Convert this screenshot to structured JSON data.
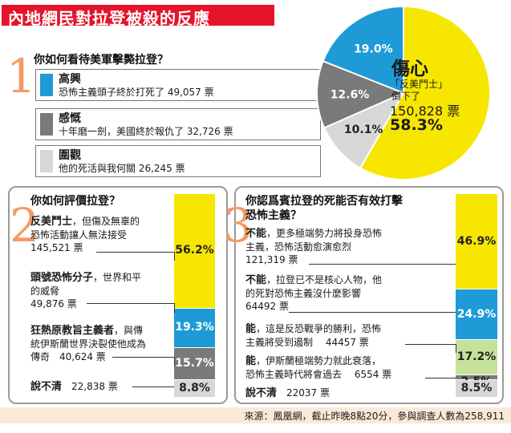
{
  "title": "內地網民對拉登被殺的反應",
  "source": "來源：鳳凰網，截止昨晚8點20分，參與調查人數為258,911",
  "colors": {
    "yellow": "#f7e600",
    "blue": "#1e9bd7",
    "darkgray": "#7a7a7a",
    "lightgray": "#d7d7d7",
    "green": "#c5e29a",
    "red": "#e5142a",
    "orange": "#f29b66"
  },
  "q1": {
    "num": "1",
    "question": "你如何看待美軍擊斃拉登？",
    "options": [
      {
        "title": "高興",
        "desc": "恐怖主義頭子終於打死了 49,057 票"
      },
      {
        "title": "感慨",
        "desc": "十年磨一劍，美國終於報仇了 32,726 票"
      },
      {
        "title": "圍觀",
        "desc": "他的死活與我何關  26,245 票"
      }
    ],
    "main_label": {
      "title": "傷心",
      "line1": "「反美鬥士」",
      "line2": "倒下了",
      "line3": "150,828 票",
      "pct": "58.3%"
    }
  },
  "q2": {
    "num": "2",
    "question": "你如何評價拉登？",
    "items": [
      {
        "bold": "反美鬥士",
        "line1": "，但傷及無辜的",
        "line2": "恐怖活動讓人無法接受",
        "line3": "145,521 票"
      },
      {
        "bold": "頭號恐怖分子",
        "line1": "，世界和平",
        "line2": "的威脅",
        "line3": "49,876 票"
      },
      {
        "bold": "狂熱原教旨主義者",
        "line1": "，與傳",
        "line2": "統伊斯蘭世界決裂使他成為",
        "line3": "傳奇　40,624 票"
      },
      {
        "bold": "說不清",
        "line1": "　22,838 票",
        "line2": "",
        "line3": ""
      }
    ]
  },
  "q3": {
    "num": "3",
    "question_line1": "你認爲賓拉登的死能否有效打擊",
    "question_line2": "恐怖主義？",
    "items": [
      {
        "bold": "不能",
        "line1": "，更多極端勢力將投身恐怖",
        "line2": "主義，恐怖活動愈演愈烈",
        "line3": "121,319 票"
      },
      {
        "bold": "不能",
        "line1": "，拉登已不是核心人物，他",
        "line2": "的死對恐怖主義沒什麼影響",
        "line3": "64492 票"
      },
      {
        "bold": "能",
        "line1": "，這是反恐戰爭的勝利，恐怖",
        "line2": "主義將受到遏制　 44457 票",
        "line3": ""
      },
      {
        "bold": "能",
        "line1": "，伊斯蘭極端勢力就此衰落，",
        "line2": "恐怖主義時代將會過去　 6554 票",
        "line3": ""
      },
      {
        "bold": "說不清",
        "line1": "　22037 票",
        "line2": "",
        "line3": ""
      }
    ]
  },
  "chart_data": [
    {
      "type": "pie",
      "labels": [
        "高興",
        "感慨",
        "圍觀",
        "傷心"
      ],
      "values": [
        19.0,
        12.6,
        10.1,
        58.3
      ],
      "value_labels": [
        "19.0%",
        "12.6%",
        "10.1%",
        "58.3%"
      ],
      "colors": [
        "#1e9bd7",
        "#7a7a7a",
        "#d7d7d7",
        "#f7e600"
      ],
      "title": "你如何看待美軍擊斃拉登？"
    },
    {
      "type": "bar",
      "stacked": true,
      "categories": [
        "反美鬥士",
        "頭號恐怖分子",
        "狂熱原教旨主義者",
        "說不清"
      ],
      "values": [
        56.2,
        19.3,
        15.7,
        8.8
      ],
      "value_labels": [
        "56.2%",
        "19.3%",
        "15.7%",
        "8.8%"
      ],
      "colors": [
        "#f7e600",
        "#1e9bd7",
        "#7a7a7a",
        "#d7d7d7"
      ],
      "title": "你如何評價拉登？"
    },
    {
      "type": "bar",
      "stacked": true,
      "categories": [
        "不能（更多極端勢力將投身恐怖主義）",
        "不能（拉登已不是核心人物）",
        "能（反恐戰爭的勝利）",
        "能（伊斯蘭極端勢力就此衰落）",
        "說不清"
      ],
      "values": [
        46.9,
        24.9,
        17.2,
        2.5,
        8.5
      ],
      "value_labels": [
        "46.9%",
        "24.9%",
        "17.2%",
        "2.5%",
        "8.5%"
      ],
      "colors": [
        "#f7e600",
        "#1e9bd7",
        "#c5e29a",
        "#7a7a7a",
        "#d7d7d7"
      ],
      "title": "你認爲賓拉登的死能否有效打擊恐怖主義？"
    }
  ]
}
